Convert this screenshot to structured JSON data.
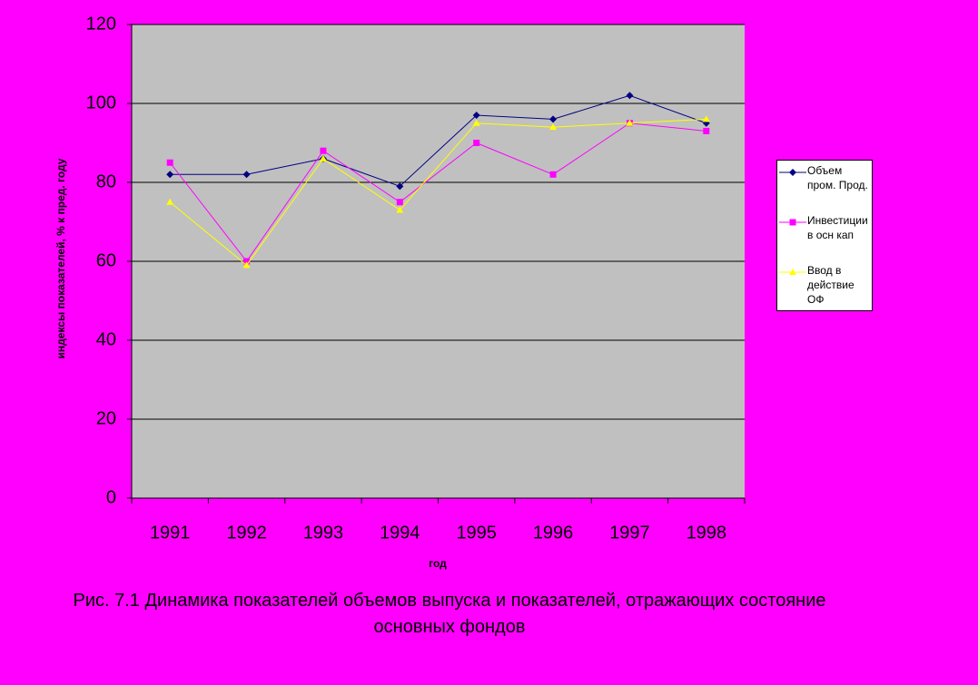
{
  "chart_data": {
    "type": "line",
    "title": "Рис. 7.1 Динамика показателей объемов выпуска и показателей, отражающих состояние основных  фондов",
    "x_label": "год",
    "y_label": "индексы показателей, % к пред. году",
    "categories": [
      "1991",
      "1992",
      "1993",
      "1994",
      "1995",
      "1996",
      "1997",
      "1998"
    ],
    "series": [
      {
        "name": "Объем пром. Прод.",
        "color": "#000080",
        "marker": "diamond",
        "values": [
          82,
          82,
          86,
          79,
          97,
          96,
          102,
          95
        ]
      },
      {
        "name": "Инвестиции в осн кап",
        "color": "#ff00ff",
        "marker": "square",
        "values": [
          85,
          60,
          88,
          75,
          90,
          82,
          95,
          93
        ]
      },
      {
        "name": "Ввод в действие ОФ",
        "color": "#ffff00",
        "marker": "triangle",
        "values": [
          75,
          59,
          86,
          73,
          95,
          94,
          95,
          96
        ]
      }
    ],
    "ylim": [
      0,
      120
    ],
    "yticks": [
      0,
      20,
      40,
      60,
      80,
      100,
      120
    ],
    "grid": true,
    "legend": "right"
  }
}
